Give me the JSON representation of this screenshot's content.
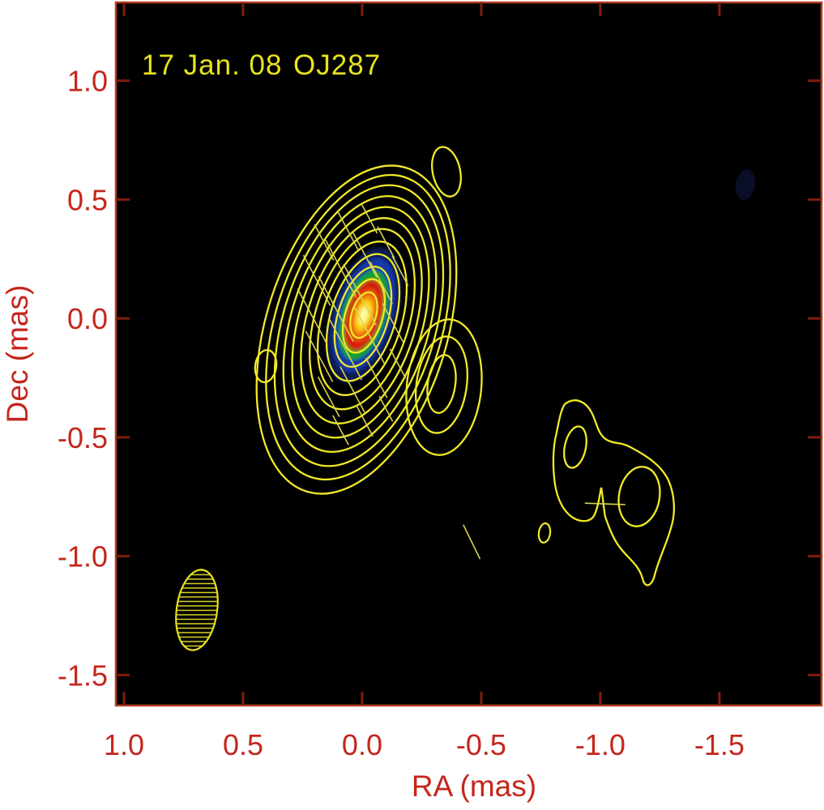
{
  "chart_data": {
    "type": "heatmap",
    "subtype": "vlbi-contour-polarization-map",
    "title": "17 Jan. 08  OJ287",
    "date_label": "17 Jan. 08",
    "source_label": "OJ287",
    "xlabel": "RA (mas)",
    "ylabel": "Dec (mas)",
    "x_tick_values": [
      1.0,
      0.5,
      0.0,
      -0.5,
      -1.0,
      -1.5
    ],
    "x_tick_labels": [
      "1.0",
      "0.5",
      "0.0",
      "-0.5",
      "-1.0",
      "-1.5"
    ],
    "y_tick_values": [
      1.0,
      0.5,
      0.0,
      -0.5,
      -1.0,
      -1.5
    ],
    "y_tick_labels": [
      "1.0",
      "0.5",
      "0.0",
      "-0.5",
      "-1.0",
      "-1.5"
    ],
    "xlim": [
      1.034,
      -1.929
    ],
    "ylim": [
      1.329,
      -1.628
    ],
    "grid": false,
    "legend": false,
    "colors": {
      "page": "#ffffff",
      "plot_background": "#000000",
      "frame": "#b43c22",
      "tick": "#801c0e",
      "axis_text": "#c4261c",
      "contour": "#f0ea28",
      "annotation_text": "#e8e41c",
      "polarization_tick": "#d9d44a",
      "beam_hatch": "#d8d420",
      "core_intensity_scale": [
        "#071b52",
        "#1338a8",
        "#16a12e",
        "#d61e0c",
        "#e85408",
        "#f49a0c",
        "#ffd816",
        "#fff9a0"
      ]
    },
    "features": [
      {
        "name": "core",
        "ra": 0.0,
        "dec": 0.0,
        "desc": "bright polarized core with rainbow intensity scale and ~12 nested contour levels, elongated NE-SW"
      },
      {
        "name": "inner-jet-knot",
        "ra": -0.33,
        "dec": -0.27,
        "desc": "jet component attached to core, 3 contour levels"
      },
      {
        "name": "upper-knot",
        "ra": -0.35,
        "dec": 0.62,
        "desc": "isolated single-contour knot north-west of core"
      },
      {
        "name": "east-knot",
        "ra": 0.4,
        "dec": -0.2,
        "desc": "small single-contour knot east of core"
      },
      {
        "name": "sw-component-east",
        "ra": -0.89,
        "dec": -0.55,
        "desc": "outer jet component, irregular contour with inner peak"
      },
      {
        "name": "sw-component-west",
        "ra": -1.16,
        "dec": -0.75,
        "desc": "outer jet component with southern tail reaching dec -1.13"
      },
      {
        "name": "faint-knot",
        "ra": -0.77,
        "dec": -0.9,
        "desc": "faint single-contour knot"
      },
      {
        "name": "pol-dash",
        "ra": -0.46,
        "dec": -0.94,
        "desc": "isolated polarization vector"
      },
      {
        "name": "faint-smudge",
        "ra": -1.61,
        "dec": 0.56,
        "desc": "very faint diffuse patch"
      }
    ],
    "beam": {
      "ra": 0.69,
      "dec": -1.23,
      "desc": "hatched restoring-beam ellipse, minor x major ~0.17 x 0.34 mas"
    },
    "polarization_ticks": [
      {
        "ra": 0.16,
        "dec": 0.32,
        "len": 0.17,
        "angle": 62
      },
      {
        "ra": 0.06,
        "dec": 0.37,
        "len": 0.19,
        "angle": 62
      },
      {
        "ra": -0.03,
        "dec": 0.42,
        "len": 0.14,
        "angle": 62
      },
      {
        "ra": 0.19,
        "dec": 0.16,
        "len": 0.24,
        "angle": 62
      },
      {
        "ra": 0.09,
        "dec": 0.21,
        "len": 0.27,
        "angle": 62
      },
      {
        "ra": -0.01,
        "dec": 0.27,
        "len": 0.22,
        "angle": 62
      },
      {
        "ra": -0.1,
        "dec": 0.32,
        "len": 0.15,
        "angle": 62
      },
      {
        "ra": 0.21,
        "dec": 0.01,
        "len": 0.26,
        "angle": 62
      },
      {
        "ra": 0.11,
        "dec": 0.04,
        "len": 0.31,
        "angle": 62
      },
      {
        "ra": 0.01,
        "dec": 0.1,
        "len": 0.29,
        "angle": 62
      },
      {
        "ra": -0.08,
        "dec": 0.15,
        "len": 0.2,
        "angle": 62
      },
      {
        "ra": -0.16,
        "dec": 0.2,
        "len": 0.14,
        "angle": 62
      },
      {
        "ra": 0.18,
        "dec": -0.16,
        "len": 0.24,
        "angle": 62
      },
      {
        "ra": 0.07,
        "dec": -0.13,
        "len": 0.29,
        "angle": 62
      },
      {
        "ra": -0.03,
        "dec": -0.07,
        "len": 0.27,
        "angle": 62
      },
      {
        "ra": -0.13,
        "dec": -0.02,
        "len": 0.19,
        "angle": 62
      },
      {
        "ra": 0.14,
        "dec": -0.33,
        "len": 0.19,
        "angle": 62
      },
      {
        "ra": 0.04,
        "dec": -0.3,
        "len": 0.22,
        "angle": 62
      },
      {
        "ra": -0.06,
        "dec": -0.25,
        "len": 0.19,
        "angle": 62
      },
      {
        "ra": -0.15,
        "dec": -0.19,
        "len": 0.14,
        "angle": 62
      },
      {
        "ra": 0.09,
        "dec": -0.47,
        "len": 0.14,
        "angle": 62
      },
      {
        "ra": -0.01,
        "dec": -0.43,
        "len": 0.15,
        "angle": 62
      },
      {
        "ra": -0.1,
        "dec": -0.38,
        "len": 0.12,
        "angle": 62
      },
      {
        "ra": -1.02,
        "dec": -0.78,
        "len": 0.17,
        "angle": 2
      },
      {
        "ra": -0.46,
        "dec": -0.94,
        "len": 0.16,
        "angle": 64
      }
    ]
  }
}
